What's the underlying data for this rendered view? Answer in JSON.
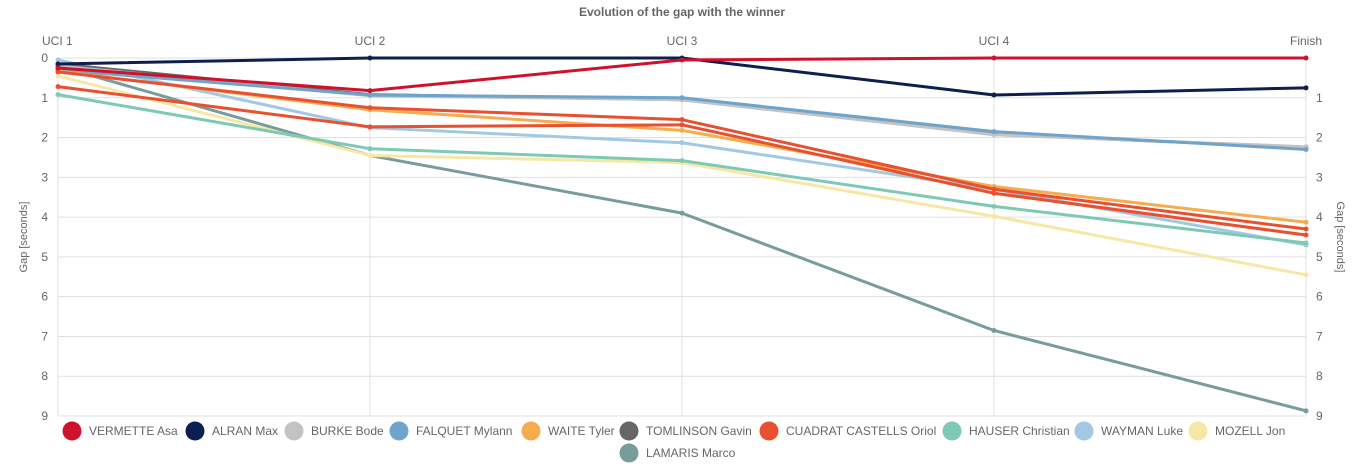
{
  "chart_data": {
    "type": "line",
    "title": "Evolution of the gap with the winner",
    "ylabel": "Gap [seconds]",
    "ylabel_right": "Gap [seconds]",
    "x": [
      "UCI 1",
      "UCI 2",
      "UCI 3",
      "UCI 4",
      "Finish"
    ],
    "ylim": [
      0,
      9
    ],
    "y_inverted": true,
    "y_ticks": [
      0,
      1,
      2,
      3,
      4,
      5,
      6,
      7,
      8,
      9
    ],
    "y_ticks_right": [
      1,
      2,
      3,
      4,
      5,
      6,
      7,
      8,
      9
    ],
    "grid": true,
    "legend_position": "bottom",
    "series": [
      {
        "name": "VERMETTE Asa",
        "color": "#d0112b",
        "values": [
          0.25,
          0.82,
          0.05,
          0.0,
          0.0
        ]
      },
      {
        "name": "ALRAN Max",
        "color": "#0c1f4f",
        "values": [
          0.15,
          0.0,
          0.0,
          0.93,
          0.75
        ]
      },
      {
        "name": "BURKE Bode",
        "color": "#c3c3c3",
        "values": [
          0.2,
          0.95,
          1.05,
          1.93,
          2.23
        ]
      },
      {
        "name": "FALQUET Mylann",
        "color": "#6ea4cc",
        "values": [
          0.3,
          0.93,
          1.0,
          1.85,
          2.3
        ]
      },
      {
        "name": "WAITE Tyler",
        "color": "#f5ac4f",
        "values": [
          0.33,
          1.3,
          1.82,
          3.23,
          4.13
        ]
      },
      {
        "name": "TOMLINSON Gavin",
        "color": "#666666",
        "values": [
          0.15,
          0.92,
          1.05,
          1.92,
          2.25
        ]
      },
      {
        "name": "CUADRAT CASTELLS Oriol",
        "color": "#e8502f",
        "values": [
          0.35,
          1.25,
          1.55,
          3.3,
          4.3
        ]
      },
      {
        "name": "HAUSER Christian",
        "color": "#7ec9b4",
        "values": [
          0.92,
          2.28,
          2.58,
          3.73,
          4.65
        ]
      },
      {
        "name": "WAYMAN Luke",
        "color": "#a3c8e3",
        "values": [
          0.05,
          1.75,
          2.13,
          3.3,
          4.7
        ]
      },
      {
        "name": "MOZELL Jon",
        "color": "#f7e7a5",
        "values": [
          0.45,
          2.45,
          2.63,
          3.98,
          5.45
        ]
      },
      {
        "name": "LAMARIS Marco",
        "color": "#789c9c",
        "values": [
          0.2,
          2.45,
          3.9,
          6.85,
          8.87
        ]
      }
    ],
    "extra_series": [
      {
        "color": "#e8502f",
        "values": [
          0.72,
          1.73,
          1.68,
          3.4,
          4.45
        ]
      }
    ]
  }
}
